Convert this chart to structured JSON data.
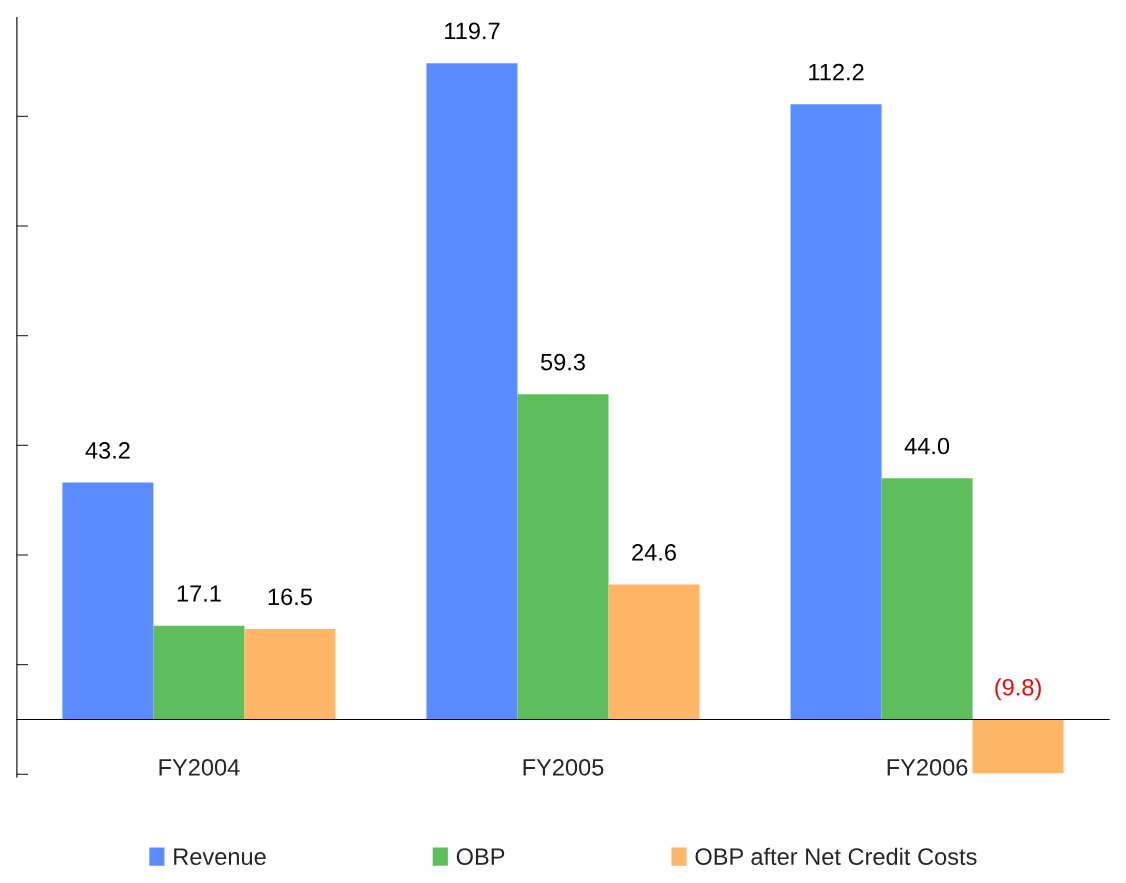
{
  "chart_data": {
    "type": "bar",
    "categories": [
      "FY2004",
      "FY2005",
      "FY2006"
    ],
    "series": [
      {
        "name": "Revenue",
        "color": "#5b8cff",
        "values": [
          43.2,
          119.7,
          112.2
        ],
        "value_labels": [
          "43.2",
          "119.7",
          "112.2"
        ]
      },
      {
        "name": "OBP",
        "color": "#5cbf5c",
        "values": [
          17.1,
          59.3,
          44.0
        ],
        "value_labels": [
          "17.1",
          "59.3",
          "44.0"
        ]
      },
      {
        "name": "OBP after Net Credit Costs",
        "color": "#ffb566",
        "values": [
          16.5,
          24.6,
          -9.8
        ],
        "value_labels": [
          "16.5",
          "24.6",
          "(9.8)"
        ]
      }
    ],
    "ylim": [
      -10.5,
      128
    ],
    "yticks": [
      {
        "value": -10,
        "label": null
      },
      {
        "value": 10,
        "label": null
      },
      {
        "value": 30,
        "label": null
      },
      {
        "value": 50,
        "label": null
      },
      {
        "value": 70,
        "label": null
      },
      {
        "value": 90,
        "label": null
      },
      {
        "value": 110,
        "label": null
      }
    ],
    "tick_labels": "x",
    "legend": "bottom",
    "grid": false
  }
}
